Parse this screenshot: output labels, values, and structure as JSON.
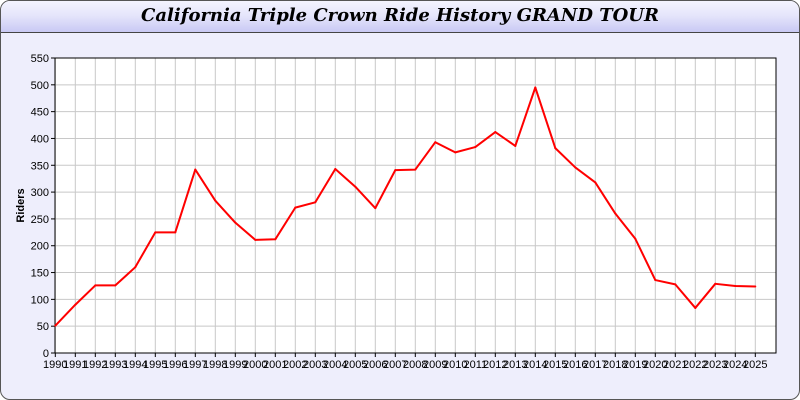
{
  "chart_data": {
    "type": "line",
    "title": "California Triple Crown Ride History GRAND TOUR",
    "xlabel": "",
    "ylabel": "Riders",
    "ylim": [
      0,
      550
    ],
    "yticks": [
      0,
      50,
      100,
      150,
      200,
      250,
      300,
      350,
      400,
      450,
      500,
      550
    ],
    "grid": true,
    "colors": {
      "line": "#ff0000",
      "grid": "#c8c8c8",
      "background": "#eeeefc",
      "plot": "#ffffff"
    },
    "x": [
      "1990",
      "1991",
      "1992",
      "1993",
      "1994",
      "1995",
      "1996",
      "1997",
      "1998",
      "1999",
      "2000",
      "2001",
      "2002",
      "2003",
      "2004",
      "2005",
      "2006",
      "2007",
      "2008",
      "2009",
      "2010",
      "2011",
      "2012",
      "2013",
      "2014",
      "2015",
      "2016",
      "2017",
      "2018",
      "2019",
      "2020",
      "2021",
      "2022",
      "2023",
      "2024",
      "2025"
    ],
    "series": [
      {
        "values": [
          51,
          90,
          126,
          126,
          160,
          225,
          225,
          342,
          284,
          243,
          211,
          212,
          271,
          281,
          343,
          310,
          270,
          341,
          342,
          393,
          374,
          384,
          412,
          386,
          495,
          382,
          346,
          318,
          260,
          213,
          136,
          128,
          84,
          129,
          125,
          124
        ]
      }
    ]
  }
}
